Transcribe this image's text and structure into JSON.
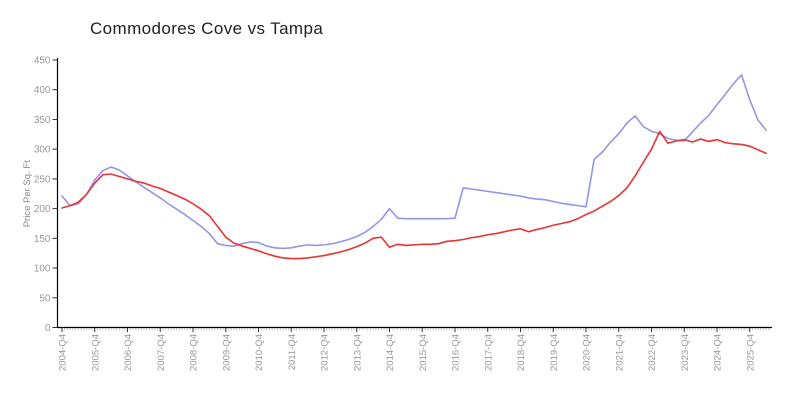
{
  "title": "Commodores Cove vs Tampa",
  "chart_data": {
    "type": "line",
    "title": "Commodores Cove vs Tampa",
    "xlabel": "",
    "ylabel": "Price Per Sq. Ft",
    "ylim": [
      0,
      450
    ],
    "y_ticks": [
      0,
      50,
      100,
      150,
      200,
      250,
      300,
      350,
      400,
      450
    ],
    "x_major_tick_labels": [
      "2004-Q4",
      "2005-Q4",
      "2006-Q4",
      "2007-Q4",
      "2008-Q4",
      "2009-Q4",
      "2010-Q4",
      "2011-Q4",
      "2012-Q4",
      "2013-Q4",
      "2014-Q4",
      "2015-Q4",
      "2016-Q4",
      "2017-Q4",
      "2018-Q4",
      "2019-Q4",
      "2020-Q4",
      "2021-Q4",
      "2022-Q4",
      "2023-Q4",
      "2024-Q4",
      "2025-Q4"
    ],
    "grid": "off",
    "legend": "none",
    "x_tick_label_rotation": -90,
    "x": [
      "2004-Q4",
      "2005-Q1",
      "2005-Q2",
      "2005-Q3",
      "2005-Q4",
      "2006-Q1",
      "2006-Q2",
      "2006-Q3",
      "2006-Q4",
      "2007-Q1",
      "2007-Q2",
      "2007-Q3",
      "2007-Q4",
      "2008-Q1",
      "2008-Q2",
      "2008-Q3",
      "2008-Q4",
      "2009-Q1",
      "2009-Q2",
      "2009-Q3",
      "2009-Q4",
      "2010-Q1",
      "2010-Q2",
      "2010-Q3",
      "2010-Q4",
      "2011-Q1",
      "2011-Q2",
      "2011-Q3",
      "2011-Q4",
      "2012-Q1",
      "2012-Q2",
      "2012-Q3",
      "2012-Q4",
      "2013-Q1",
      "2013-Q2",
      "2013-Q3",
      "2013-Q4",
      "2014-Q1",
      "2014-Q2",
      "2014-Q3",
      "2014-Q4",
      "2015-Q1",
      "2015-Q2",
      "2015-Q3",
      "2015-Q4",
      "2016-Q1",
      "2016-Q2",
      "2016-Q3",
      "2016-Q4",
      "2017-Q1",
      "2017-Q2",
      "2017-Q3",
      "2017-Q4",
      "2018-Q1",
      "2018-Q2",
      "2018-Q3",
      "2018-Q4",
      "2019-Q1",
      "2019-Q2",
      "2019-Q3",
      "2019-Q4",
      "2020-Q1",
      "2020-Q2",
      "2020-Q3",
      "2020-Q4",
      "2021-Q1",
      "2021-Q2",
      "2021-Q3",
      "2021-Q4",
      "2022-Q1",
      "2022-Q2",
      "2022-Q3",
      "2022-Q4",
      "2023-Q1",
      "2023-Q2",
      "2023-Q3",
      "2023-Q4",
      "2024-Q1",
      "2024-Q2",
      "2024-Q3",
      "2024-Q4",
      "2025-Q1",
      "2025-Q2",
      "2025-Q3",
      "2025-Q4",
      "2026-Q1",
      "2026-Q2"
    ],
    "series": [
      {
        "name": "Commodores Cove",
        "color": "#9595e8",
        "values": [
          221,
          205,
          208,
          224,
          248,
          264,
          270,
          265,
          255,
          245,
          236,
          227,
          218,
          208,
          199,
          190,
          180,
          170,
          158,
          141,
          138,
          137,
          141,
          144,
          143,
          137,
          134,
          133,
          134,
          137,
          139,
          138,
          139,
          141,
          144,
          148,
          153,
          160,
          170,
          182,
          200,
          184,
          183,
          183,
          183,
          183,
          183,
          183,
          184,
          235,
          233,
          231,
          229,
          227,
          225,
          223,
          221,
          218,
          216,
          215,
          212,
          209,
          207,
          205,
          203,
          283,
          295,
          312,
          326,
          344,
          356,
          338,
          330,
          326,
          318,
          315,
          314,
          329,
          344,
          357,
          375,
          392,
          410,
          425,
          383,
          349,
          332
        ]
      },
      {
        "name": "Tampa",
        "color": "#e83333",
        "values": [
          201,
          205,
          211,
          224,
          243,
          257,
          258,
          254,
          250,
          246,
          243,
          238,
          234,
          228,
          222,
          216,
          208,
          199,
          188,
          170,
          152,
          142,
          137,
          133,
          129,
          124,
          120,
          117,
          116,
          116,
          117,
          119,
          121,
          124,
          127,
          131,
          136,
          142,
          150,
          152,
          135,
          140,
          138,
          139,
          140,
          140,
          141,
          145,
          146,
          148,
          151,
          153,
          156,
          158,
          161,
          164,
          166,
          161,
          165,
          168,
          172,
          175,
          178,
          183,
          190,
          196,
          204,
          212,
          222,
          235,
          255,
          278,
          300,
          330,
          310,
          314,
          316,
          312,
          317,
          313,
          316,
          311,
          309,
          308,
          305,
          299,
          293
        ]
      }
    ],
    "style": {
      "axis_color": "#000000",
      "major_tick_color": "#333333",
      "minor_tick_color": "#cccccc",
      "tick_label_color": "#999999",
      "y_axis_title_color": "#888888",
      "title_color": "#222222"
    }
  }
}
